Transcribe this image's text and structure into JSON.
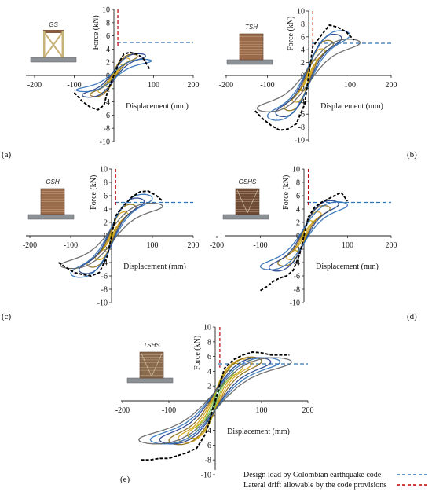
{
  "chart_data": [
    {
      "type": "line",
      "panel_label": "(a)",
      "model_label": "GS",
      "xlabel": "Displacement (mm)",
      "ylabel": "Force (kN)",
      "xlim": [
        -200,
        200
      ],
      "ylim": [
        -10,
        10
      ],
      "x_ticks": [
        -200,
        -100,
        0,
        100,
        200
      ],
      "y_ticks": [
        -10,
        -8,
        -6,
        -4,
        -2,
        0,
        2,
        4,
        6,
        8,
        10
      ],
      "design_load": 5,
      "drift_limit": 10,
      "envelope": {
        "x": [
          -100,
          -80,
          -60,
          -40,
          -25,
          -15,
          0,
          15,
          25,
          40,
          60,
          75,
          90
        ],
        "y": [
          -2.6,
          -3.9,
          -4.8,
          -5.2,
          -4.5,
          -2.2,
          0,
          2.2,
          3.2,
          3.5,
          3.2,
          2.5,
          1.0
        ]
      },
      "hysteresis_amplitudes": [
        20,
        40,
        60,
        80,
        95
      ],
      "hysteresis_peaks": [
        1.8,
        2.8,
        3.4,
        3.5,
        2.6
      ]
    },
    {
      "type": "line",
      "panel_label": "(b)",
      "model_label": "TSH",
      "xlabel": "Displacement (mm)",
      "ylabel": "Force (kN)",
      "xlim": [
        -200,
        200
      ],
      "ylim": [
        -10,
        10
      ],
      "x_ticks": [
        -200,
        -100,
        0,
        100,
        200
      ],
      "y_ticks": [
        -10,
        -8,
        -6,
        -4,
        -2,
        0,
        2,
        4,
        6,
        8,
        10
      ],
      "design_load": 5,
      "drift_limit": 10,
      "envelope": {
        "x": [
          -130,
          -110,
          -90,
          -70,
          -50,
          -30,
          -10,
          0,
          10,
          30,
          50,
          70,
          90,
          110
        ],
        "y": [
          -5.5,
          -6.8,
          -7.8,
          -8.5,
          -8.3,
          -7.5,
          -4.5,
          0,
          4.5,
          6.2,
          7.8,
          7.5,
          6.8,
          5.5
        ]
      },
      "hysteresis_amplitudes": [
        20,
        40,
        60,
        80,
        100,
        125
      ],
      "hysteresis_peaks": [
        2.6,
        4.4,
        5.8,
        6.8,
        7.4,
        6.0
      ]
    },
    {
      "type": "line",
      "panel_label": "(c)",
      "model_label": "GSH",
      "xlabel": "Displacement (mm)",
      "ylabel": "Force (kN)",
      "xlim": [
        -200,
        200
      ],
      "ylim": [
        -10,
        10
      ],
      "x_ticks": [
        -200,
        -100,
        0,
        100,
        200
      ],
      "y_ticks": [
        -10,
        -8,
        -6,
        -4,
        -2,
        0,
        2,
        4,
        6,
        8,
        10
      ],
      "design_load": 5,
      "drift_limit": 10,
      "envelope": {
        "x": [
          -130,
          -110,
          -90,
          -70,
          -50,
          -30,
          -10,
          0,
          10,
          30,
          50,
          70,
          90,
          110,
          125
        ],
        "y": [
          -4.0,
          -4.8,
          -5.5,
          -5.8,
          -6.0,
          -5.5,
          -3.0,
          0,
          3.0,
          4.5,
          5.8,
          6.6,
          6.7,
          6.0,
          5.2
        ]
      },
      "hysteresis_amplitudes": [
        20,
        40,
        60,
        80,
        100,
        125
      ],
      "hysteresis_peaks": [
        2.2,
        3.8,
        5.0,
        6.0,
        6.6,
        5.2
      ]
    },
    {
      "type": "line",
      "panel_label": "(d)",
      "model_label": "GSHS",
      "xlabel": "Displacement (mm)",
      "ylabel": "Force (kN)",
      "xlim": [
        -200,
        200
      ],
      "ylim": [
        -10,
        10
      ],
      "x_ticks": [
        -200,
        -100,
        0,
        100,
        200
      ],
      "y_ticks": [
        -10,
        -8,
        -6,
        -4,
        -2,
        0,
        2,
        4,
        6,
        8,
        10
      ],
      "design_load": 5,
      "drift_limit": 10,
      "envelope": {
        "x": [
          -100,
          -85,
          -70,
          -55,
          -40,
          -25,
          -10,
          0,
          10,
          25,
          40,
          55,
          70,
          85,
          100
        ],
        "y": [
          -8.2,
          -7.6,
          -6.8,
          -6.3,
          -6.0,
          -5.2,
          -2.8,
          0,
          2.8,
          4.3,
          5.0,
          5.5,
          6.0,
          6.5,
          5.2
        ]
      },
      "hysteresis_amplitudes": [
        20,
        40,
        60,
        80,
        100
      ],
      "hysteresis_peaks": [
        2.4,
        3.8,
        4.8,
        5.6,
        5.4
      ]
    },
    {
      "type": "line",
      "panel_label": "(e)",
      "model_label": "TSHS",
      "xlabel": "Displacement (mm)",
      "ylabel": "Force (kN)",
      "xlim": [
        -200,
        200
      ],
      "ylim": [
        -10,
        10
      ],
      "x_ticks": [
        -200,
        -100,
        0,
        100,
        200
      ],
      "y_ticks": [
        -10,
        -8,
        -6,
        -4,
        -2,
        0,
        2,
        4,
        6,
        8,
        10
      ],
      "design_load": 5,
      "drift_limit": 10,
      "envelope": {
        "x": [
          -160,
          -140,
          -120,
          -100,
          -80,
          -60,
          -40,
          -20,
          0,
          20,
          40,
          60,
          80,
          100,
          120,
          140,
          160
        ],
        "y": [
          -8.0,
          -8.0,
          -7.8,
          -7.8,
          -7.4,
          -7.0,
          -6.4,
          -4.4,
          0,
          4.4,
          5.6,
          6.2,
          6.6,
          6.5,
          6.2,
          6.2,
          6.2
        ]
      },
      "hysteresis_amplitudes": [
        20,
        40,
        60,
        80,
        100,
        120,
        140,
        165
      ],
      "hysteresis_peaks": [
        3.0,
        4.4,
        5.4,
        6.0,
        6.3,
        6.2,
        6.2,
        6.2
      ]
    }
  ],
  "colors": {
    "envelope": "#000000",
    "design_load": "#2e75b6",
    "drift_limit": "#c00000",
    "cycle_palette": [
      "#2e7d32",
      "#8bc34a",
      "#c6a300",
      "#d4a017",
      "#8b6914",
      "#1f3e8a",
      "#2d6fb8",
      "#606060"
    ],
    "model_wood_light": "#c9b27a",
    "model_wood_dark": "#8a5a3c",
    "model_base": "#8c9196"
  },
  "legend": {
    "design_load_label": "Design load by Colombian earthquake code",
    "drift_label": "Lateral drift allowable by the code provisions"
  }
}
